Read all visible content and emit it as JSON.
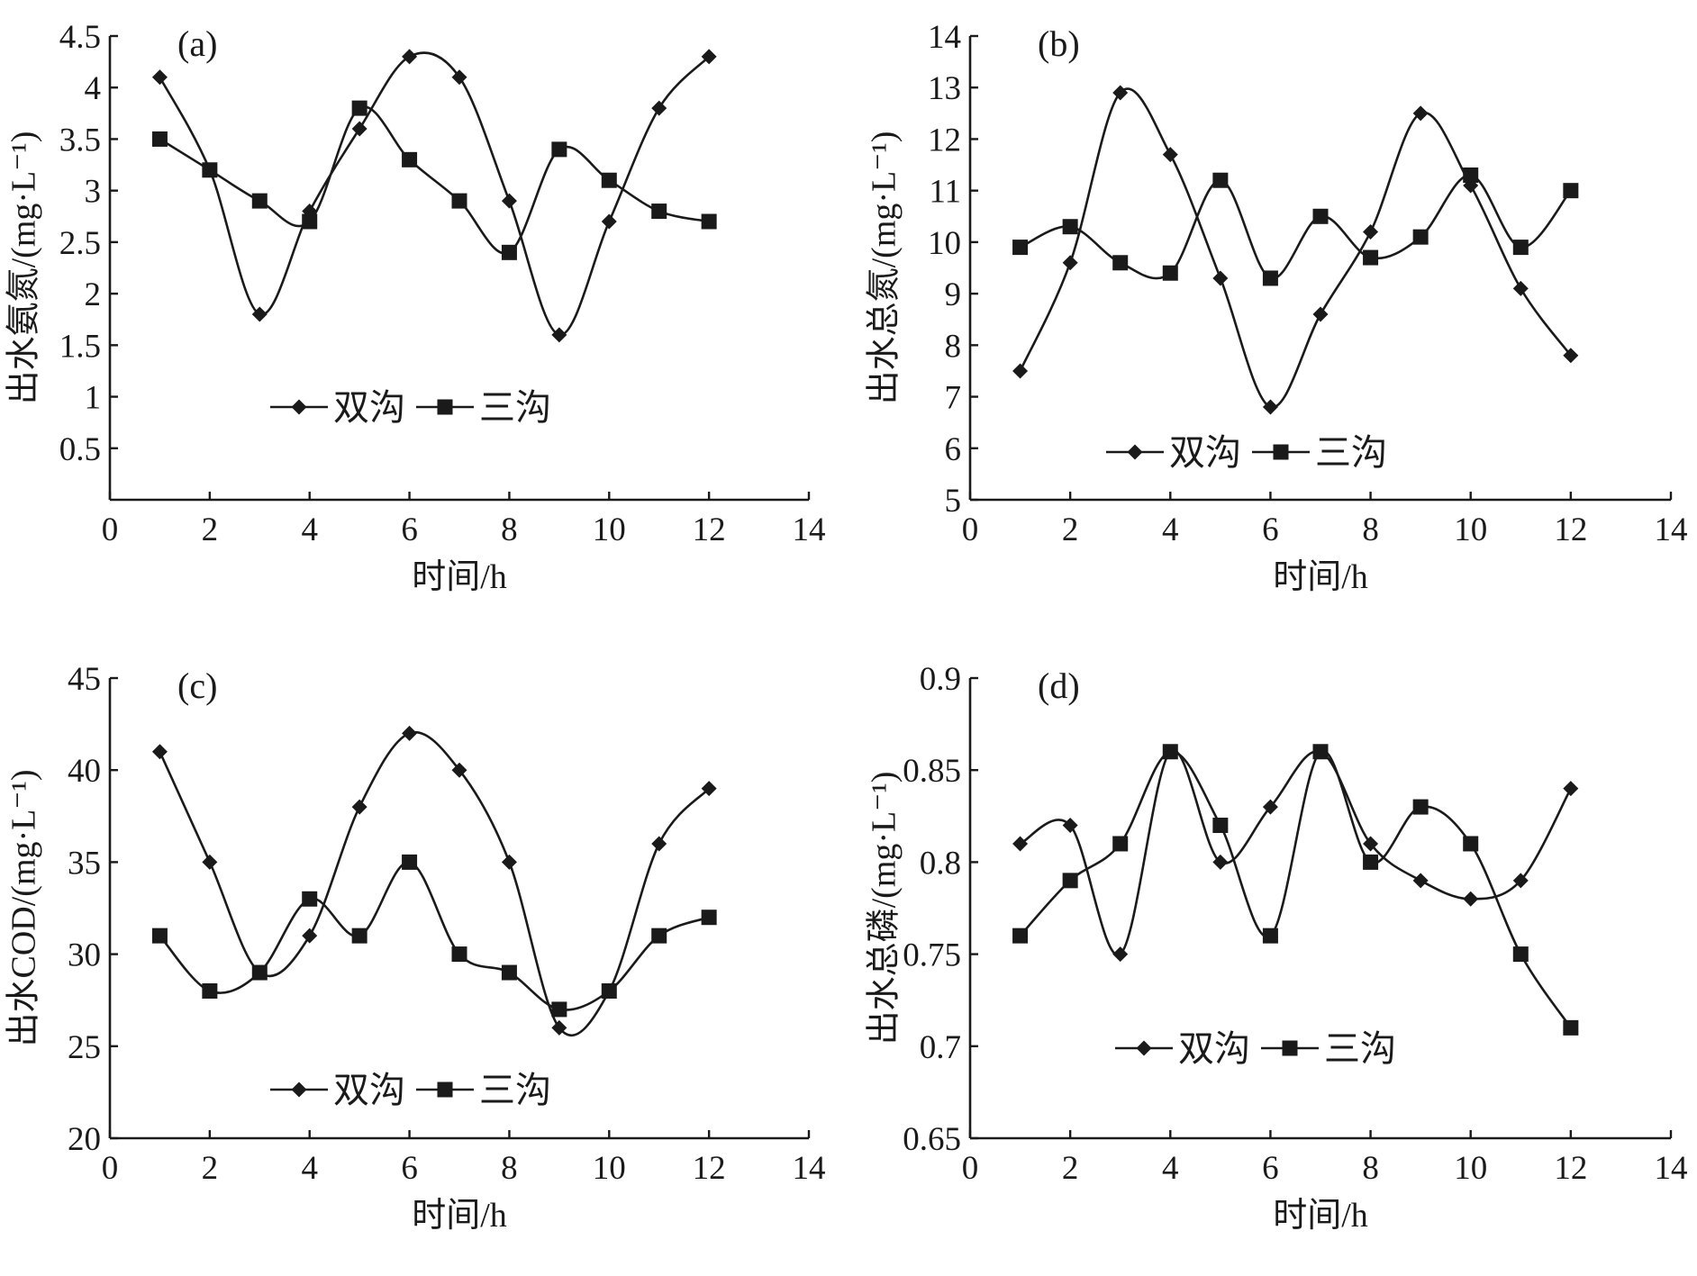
{
  "legend": {
    "series_1": "双沟",
    "series_2": "三沟"
  },
  "chart_data": [
    {
      "type": "line",
      "panel": "(a)",
      "ylabel": "出水氨氮/(mg·L⁻¹)",
      "xlabel": "时间/h",
      "xlim": [
        0,
        14
      ],
      "ylim": [
        0,
        4.5
      ],
      "x_ticks": [
        "0",
        "2",
        "4",
        "6",
        "8",
        "10",
        "12",
        "14"
      ],
      "y_ticks": [
        "0.5",
        "1",
        "1.5",
        "2",
        "2.5",
        "3",
        "3.5",
        "4",
        "4.5"
      ],
      "legend_position": "lower-center",
      "series": [
        {
          "name": "双沟",
          "marker": "diamond",
          "x": [
            1,
            2,
            3,
            4,
            5,
            6,
            7,
            8,
            9,
            10,
            11,
            12
          ],
          "values": [
            4.1,
            3.2,
            1.8,
            2.8,
            3.6,
            4.3,
            4.1,
            2.9,
            1.6,
            2.7,
            3.8,
            4.3
          ]
        },
        {
          "name": "三沟",
          "marker": "square",
          "x": [
            1,
            2,
            3,
            4,
            5,
            6,
            7,
            8,
            9,
            10,
            11,
            12
          ],
          "values": [
            3.5,
            3.2,
            2.9,
            2.7,
            3.8,
            3.3,
            2.9,
            2.4,
            3.4,
            3.1,
            2.8,
            2.7
          ]
        }
      ]
    },
    {
      "type": "line",
      "panel": "(b)",
      "ylabel": "出水总氮/(mg·L⁻¹)",
      "xlabel": "时间/h",
      "xlim": [
        0,
        14
      ],
      "ylim": [
        5,
        14
      ],
      "x_ticks": [
        "0",
        "2",
        "4",
        "6",
        "8",
        "10",
        "12",
        "14"
      ],
      "y_ticks": [
        "5",
        "6",
        "7",
        "8",
        "9",
        "10",
        "11",
        "12",
        "13",
        "14"
      ],
      "legend_position": "lower-center",
      "series": [
        {
          "name": "双沟",
          "marker": "diamond",
          "x": [
            1,
            2,
            3,
            4,
            5,
            6,
            7,
            8,
            9,
            10,
            11,
            12
          ],
          "values": [
            7.5,
            9.6,
            12.9,
            11.7,
            9.3,
            6.8,
            8.6,
            10.2,
            12.5,
            11.1,
            9.1,
            7.8
          ]
        },
        {
          "name": "三沟",
          "marker": "square",
          "x": [
            1,
            2,
            3,
            4,
            5,
            6,
            7,
            8,
            9,
            10,
            11,
            12
          ],
          "values": [
            9.9,
            10.3,
            9.6,
            9.4,
            11.2,
            9.3,
            10.5,
            9.7,
            10.1,
            11.3,
            9.9,
            11.0
          ]
        }
      ]
    },
    {
      "type": "line",
      "panel": "(c)",
      "ylabel": "出水COD/(mg·L⁻¹)",
      "xlabel": "时间/h",
      "xlim": [
        0,
        14
      ],
      "ylim": [
        20,
        45
      ],
      "x_ticks": [
        "0",
        "2",
        "4",
        "6",
        "8",
        "10",
        "12",
        "14"
      ],
      "y_ticks": [
        "20",
        "25",
        "30",
        "35",
        "40",
        "45"
      ],
      "legend_position": "lower-center",
      "series": [
        {
          "name": "双沟",
          "marker": "diamond",
          "x": [
            1,
            2,
            3,
            4,
            5,
            6,
            7,
            8,
            9,
            10,
            11,
            12
          ],
          "values": [
            41,
            35,
            29,
            31,
            38,
            42,
            40,
            35,
            26,
            28,
            36,
            39
          ]
        },
        {
          "name": "三沟",
          "marker": "square",
          "x": [
            1,
            2,
            3,
            4,
            5,
            6,
            7,
            8,
            9,
            10,
            11,
            12
          ],
          "values": [
            31,
            28,
            29,
            33,
            31,
            35,
            30,
            29,
            27,
            28,
            31,
            32
          ]
        }
      ]
    },
    {
      "type": "line",
      "panel": "(d)",
      "ylabel": "出水总磷/(mg·L⁻¹)",
      "xlabel": "时间/h",
      "xlim": [
        0,
        14
      ],
      "ylim": [
        0.65,
        0.9
      ],
      "x_ticks": [
        "0",
        "2",
        "4",
        "6",
        "8",
        "10",
        "12",
        "14"
      ],
      "y_ticks": [
        "0.65",
        "0.7",
        "0.75",
        "0.8",
        "0.85",
        "0.9"
      ],
      "legend_position": "lower-center",
      "series": [
        {
          "name": "双沟",
          "marker": "diamond",
          "x": [
            1,
            2,
            3,
            4,
            5,
            6,
            7,
            8,
            9,
            10,
            11,
            12
          ],
          "values": [
            0.81,
            0.82,
            0.75,
            0.86,
            0.8,
            0.83,
            0.86,
            0.81,
            0.79,
            0.78,
            0.79,
            0.84
          ]
        },
        {
          "name": "三沟",
          "marker": "square",
          "x": [
            1,
            2,
            3,
            4,
            5,
            6,
            7,
            8,
            9,
            10,
            11,
            12
          ],
          "values": [
            0.76,
            0.79,
            0.81,
            0.86,
            0.82,
            0.76,
            0.86,
            0.8,
            0.83,
            0.81,
            0.75,
            0.71
          ]
        }
      ]
    }
  ]
}
